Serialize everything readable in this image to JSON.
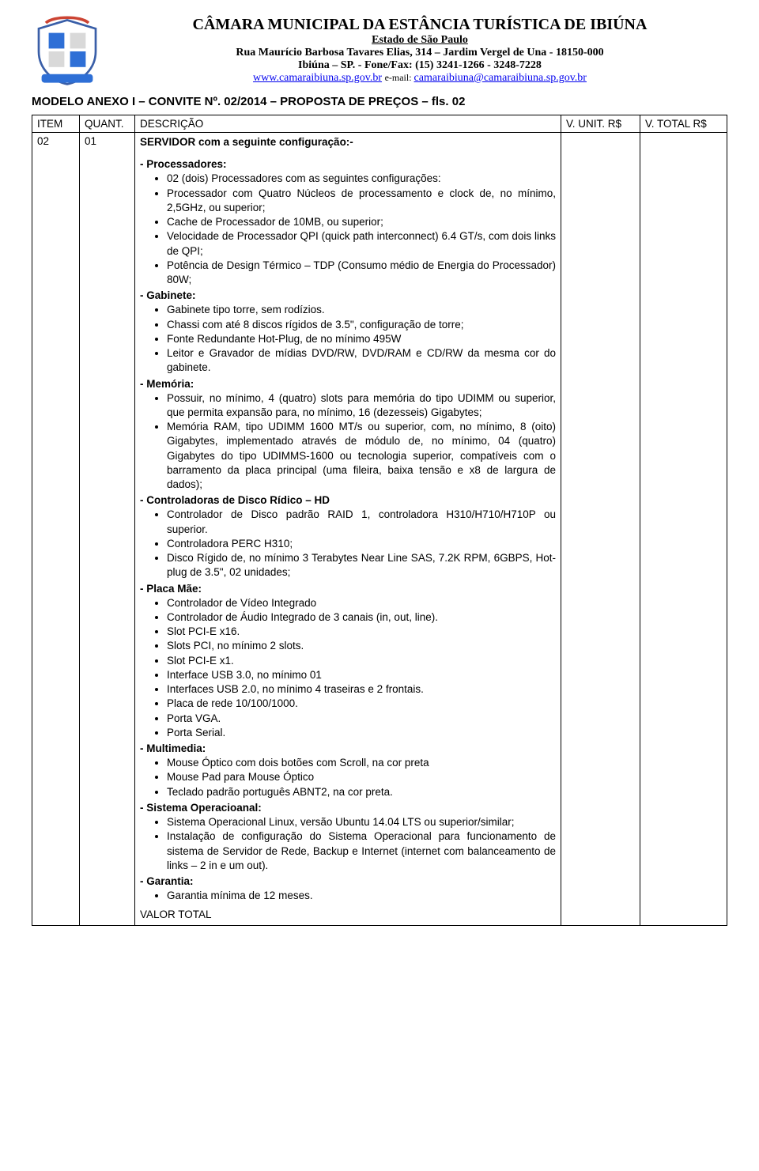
{
  "header": {
    "title": "CÂMARA MUNICIPAL DA ESTÂNCIA TURÍSTICA DE IBIÚNA",
    "subtitle1": "Estado de São Paulo",
    "subtitle2": "Rua Maurício Barbosa Tavares Elias, 314 – Jardim Vergel de Una - 18150-000",
    "subtitle3": "Ibiúna – SP. - Fone/Fax: (15) 3241-1266 - 3248-7228",
    "site": "www.camaraibiuna.sp.gov.br",
    "email_label": "e-mail:",
    "email": "camaraibiuna@camaraibiuna.sp.gov.br"
  },
  "model_line": "MODELO ANEXO I – CONVITE Nº. 02/2014 – PROPOSTA DE PREÇOS – fls. 02",
  "table": {
    "headers": {
      "item": "ITEM",
      "quant": "QUANT.",
      "desc": "DESCRIÇÃO",
      "vunit": "V. UNIT. R$",
      "vtotal": "V. TOTAL R$"
    },
    "row": {
      "item": "02",
      "quant": "01",
      "intro": "SERVIDOR com a seguinte configuração:-",
      "sections": [
        {
          "heading": "- Processadores:",
          "items": [
            "02 (dois) Processadores com as seguintes configurações:",
            "Processador com Quatro Núcleos de processamento e clock de, no mínimo, 2,5GHz, ou superior;",
            "Cache de Processador de 10MB, ou superior;",
            "Velocidade de Processador QPI (quick path interconnect) 6.4 GT/s, com dois links de QPI;",
            "Potência de Design Térmico – TDP (Consumo médio de Energia do Processador)  80W;"
          ]
        },
        {
          "heading": "- Gabinete:",
          "items": [
            "Gabinete tipo torre, sem rodízios.",
            "Chassi com até 8 discos rígidos de 3.5\", configuração de torre;",
            "Fonte Redundante Hot-Plug, de no mínimo 495W",
            "Leitor e Gravador de mídias DVD/RW, DVD/RAM e CD/RW da mesma cor do gabinete."
          ]
        },
        {
          "heading": "- Memória:",
          "items": [
            "Possuir, no mínimo, 4 (quatro) slots para memória do tipo UDIMM ou superior, que permita expansão para, no mínimo, 16 (dezesseis) Gigabytes;",
            "Memória RAM, tipo UDIMM 1600 MT/s ou superior, com, no mínimo, 8 (oito) Gigabytes, implementado através de módulo de, no mínimo, 04 (quatro) Gigabytes do tipo UDIMMS-1600 ou tecnologia superior, compatíveis com o barramento da placa principal (uma fileira, baixa tensão e x8 de largura de dados);"
          ]
        },
        {
          "heading": "- Controladoras de Disco Rídico – HD",
          "items": [
            "Controlador de Disco padrão RAID 1, controladora H310/H710/H710P ou superior.",
            "Controladora PERC H310;",
            "Disco Rígido de, no mínimo 3 Terabytes Near Line SAS, 7.2K RPM, 6GBPS, Hot-plug de 3.5\", 02 unidades;"
          ]
        },
        {
          "heading": "- Placa Mãe:",
          "items": [
            "Controlador de Vídeo Integrado",
            "Controlador de Áudio Integrado de 3 canais (in, out, line).",
            "Slot PCI-E x16.",
            "Slots PCI, no mínimo 2 slots.",
            "Slot PCI-E x1.",
            "Interface USB 3.0, no mínimo 01",
            "Interfaces USB 2.0, no mínimo 4 traseiras e 2 frontais.",
            "Placa de rede 10/100/1000.",
            "Porta VGA.",
            "Porta Serial."
          ]
        },
        {
          "heading": "- Multimedia:",
          "items": [
            "Mouse Óptico com dois botões com Scroll, na cor preta",
            "Mouse Pad para Mouse Óptico",
            "Teclado padrão português ABNT2, na cor preta."
          ]
        },
        {
          "heading": "- Sistema Operacioanal:",
          "items": [
            "Sistema Operacional Linux, versão Ubuntu 14.04 LTS ou superior/similar;",
            "Instalação de configuração do Sistema Operacional para funcionamento de sistema de Servidor de Rede, Backup e Internet (internet com balanceamento de links – 2 in e um out)."
          ]
        },
        {
          "heading": "- Garantia:",
          "items": [
            "Garantia mínima de 12 meses."
          ]
        }
      ],
      "valor_total": "VALOR TOTAL"
    }
  }
}
